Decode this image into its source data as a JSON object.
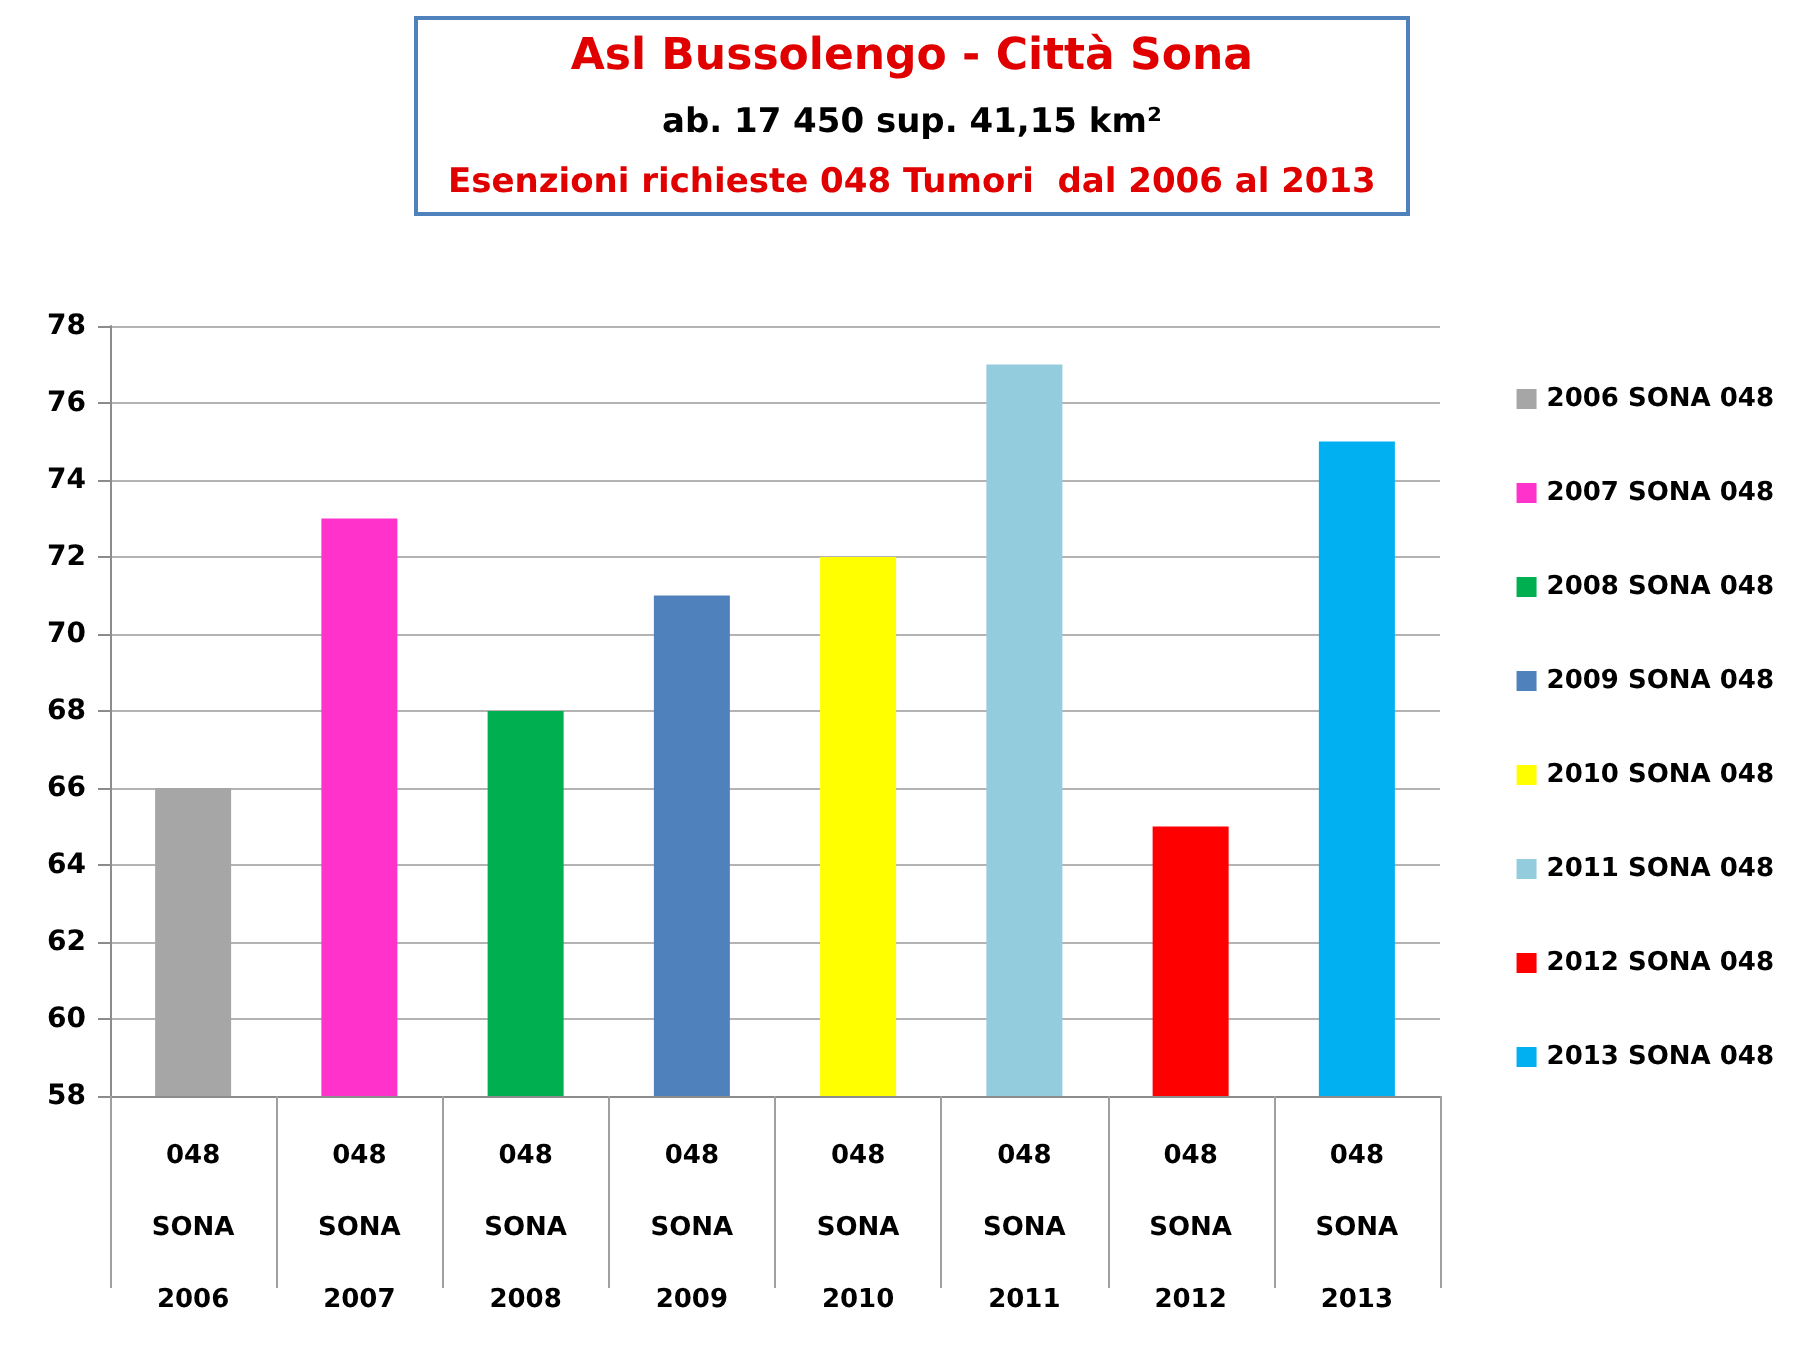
{
  "chart_data": {
    "type": "bar",
    "title": "Asl Bussolengo - Città Sona",
    "subtitle": "ab. 17 450 sup. 41,15 km²",
    "annotations": [
      "Esenzioni richieste 048 Tumori  dal 2006 al 2013"
    ],
    "categories": [
      "048 SONA 2006",
      "048 SONA 2007",
      "048 SONA 2008",
      "048 SONA 2009",
      "048 SONA 2010",
      "048 SONA 2011",
      "048 SONA 2012",
      "048 SONA 2013"
    ],
    "series": [
      {
        "name": "2006 SONA 048",
        "color": "#a6a6a6",
        "values": [
          66,
          null,
          null,
          null,
          null,
          null,
          null,
          null
        ]
      },
      {
        "name": "2007 SONA 048",
        "color": "#ff33cc",
        "values": [
          null,
          73,
          null,
          null,
          null,
          null,
          null,
          null
        ]
      },
      {
        "name": "2008 SONA 048",
        "color": "#00b050",
        "values": [
          null,
          null,
          68,
          null,
          null,
          null,
          null,
          null
        ]
      },
      {
        "name": "2009 SONA 048",
        "color": "#4f81bd",
        "values": [
          null,
          null,
          null,
          71,
          null,
          null,
          null,
          null
        ]
      },
      {
        "name": "2010 SONA 048",
        "color": "#ffff00",
        "values": [
          null,
          null,
          null,
          null,
          72,
          null,
          null,
          null
        ]
      },
      {
        "name": "2011 SONA 048",
        "color": "#93cddd",
        "values": [
          null,
          null,
          null,
          null,
          null,
          77,
          null,
          null
        ]
      },
      {
        "name": "2012 SONA 048",
        "color": "#ff0000",
        "values": [
          null,
          null,
          null,
          null,
          null,
          null,
          65,
          null
        ]
      },
      {
        "name": "2013 SONA 048",
        "color": "#00b0f0",
        "values": [
          null,
          null,
          null,
          null,
          null,
          null,
          null,
          75
        ]
      }
    ],
    "ylim": [
      58,
      78
    ],
    "yticks": [
      58,
      60,
      62,
      64,
      66,
      68,
      70,
      72,
      74,
      76,
      78
    ],
    "grid": "y",
    "legend": "right"
  }
}
